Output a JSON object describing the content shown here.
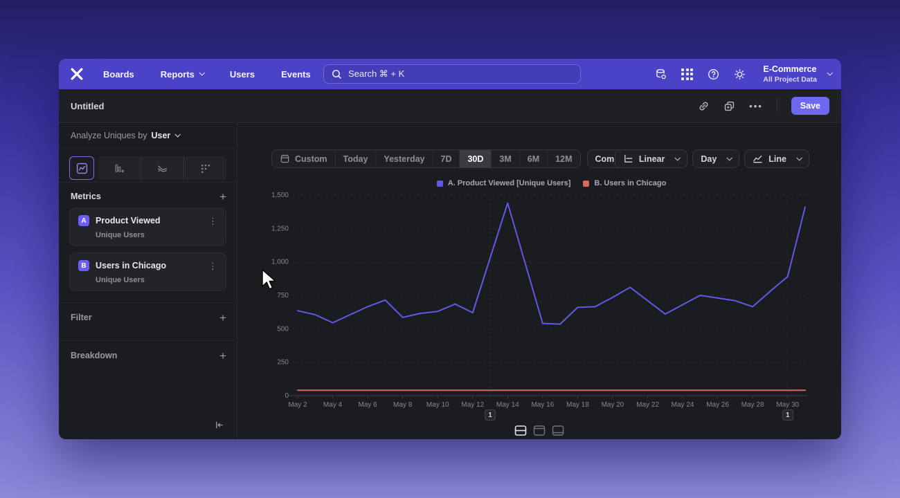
{
  "nav": {
    "brand_icon": "x-logo",
    "links": [
      {
        "label": "Boards"
      },
      {
        "label": "Reports"
      },
      {
        "label": "Users"
      },
      {
        "label": "Events"
      }
    ],
    "search_placeholder": "Search  ⌘ + K",
    "project_name": "E-Commerce",
    "project_subtitle": "All Project Data"
  },
  "doc_header": {
    "title": "Untitled",
    "save_label": "Save"
  },
  "sidebar": {
    "analyze_prefix": "Analyze Uniques by",
    "analyze_value": "User",
    "chart_type_icons": [
      "line-chart",
      "bar-chart",
      "flow-chart",
      "scatter-chart"
    ],
    "selected_chart_type": "line-chart",
    "metrics_title": "Metrics",
    "metrics": [
      {
        "badge": "A",
        "name": "Product Viewed",
        "subtitle": "Unique Users"
      },
      {
        "badge": "B",
        "name": "Users in Chicago",
        "subtitle": "Unique Users"
      }
    ],
    "filter_label": "Filter",
    "breakdown_label": "Breakdown"
  },
  "toolbar": {
    "date_ranges": [
      "Custom",
      "Today",
      "Yesterday",
      "7D",
      "30D",
      "3M",
      "6M",
      "12M"
    ],
    "selected_range": "30D",
    "compare_label": "Compare",
    "scale_label": "Linear",
    "interval_label": "Day",
    "chart_style_label": "Line"
  },
  "legend": [
    {
      "label": "A. Product Viewed [Unique Users]",
      "color": "#6159e9"
    },
    {
      "label": "B. Users in Chicago",
      "color": "#d9695f"
    }
  ],
  "annotations": {
    "markers": [
      {
        "label": "1",
        "date": "May 13"
      },
      {
        "label": "1",
        "date": "May 30"
      }
    ]
  },
  "chart_data": {
    "type": "line",
    "x": [
      "May 2",
      "May 3",
      "May 4",
      "May 5",
      "May 6",
      "May 7",
      "May 8",
      "May 9",
      "May 10",
      "May 11",
      "May 12",
      "May 13",
      "May 14",
      "May 15",
      "May 16",
      "May 17",
      "May 18",
      "May 19",
      "May 20",
      "May 21",
      "May 22",
      "May 23",
      "May 24",
      "May 25",
      "May 26",
      "May 27",
      "May 28",
      "May 29",
      "May 30",
      "May 31"
    ],
    "x_tick_labels": [
      "May 2",
      "May 4",
      "May 6",
      "May 8",
      "May 10",
      "May 12",
      "May 14",
      "May 16",
      "May 18",
      "May 20",
      "May 22",
      "May 24",
      "May 26",
      "May 28",
      "May 30"
    ],
    "series": [
      {
        "name": "A. Product Viewed [Unique Users]",
        "color": "#6159e9",
        "values": [
          635,
          605,
          545,
          605,
          665,
          715,
          585,
          615,
          630,
          685,
          620,
          1030,
          1440,
          990,
          540,
          535,
          660,
          665,
          735,
          810,
          710,
          610,
          680,
          750,
          730,
          710,
          665,
          780,
          890,
          1410
        ]
      },
      {
        "name": "B. Users in Chicago",
        "color": "#d9695f",
        "values": [
          40,
          40,
          40,
          40,
          40,
          40,
          40,
          40,
          40,
          40,
          40,
          40,
          40,
          40,
          40,
          40,
          40,
          40,
          40,
          40,
          40,
          40,
          40,
          40,
          40,
          40,
          40,
          40,
          40,
          40
        ]
      }
    ],
    "ylim": [
      0,
      1500
    ],
    "yticks": [
      0,
      250,
      500,
      750,
      1000,
      1250,
      1500
    ],
    "ytick_labels": [
      "0",
      "250",
      "500",
      "750",
      "1,000",
      "1,250",
      "1,500"
    ],
    "grid": "horizontal-dashed",
    "legend_position": "top-center"
  },
  "colors": {
    "nav_bg": "#4a43c8",
    "accent": "#6e68f0",
    "selected_pill_bg": "#3a3b41",
    "window_bg": "#1d1e22"
  }
}
